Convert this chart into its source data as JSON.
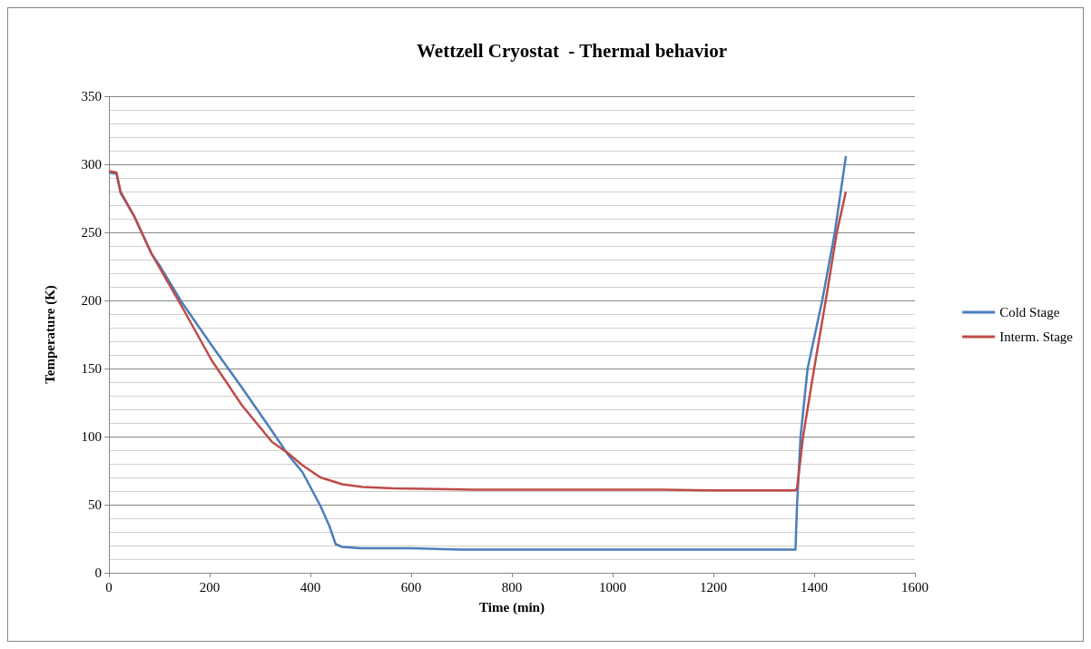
{
  "chart_data": {
    "type": "line",
    "title": "Wettzell Cryostat  - Thermal behavior",
    "xlabel": "Time (min)",
    "ylabel": "Temperature (K)",
    "xlim": [
      0,
      1600
    ],
    "xticks": [
      0,
      200,
      400,
      600,
      800,
      1000,
      1200,
      1400,
      1600
    ],
    "ylim": [
      0,
      350
    ],
    "yticks": [
      0,
      50,
      100,
      150,
      200,
      250,
      300,
      350
    ],
    "grid": "y",
    "legend": "right",
    "marker": "none",
    "line_style": "solid",
    "series": [
      {
        "name": "Cold Stage",
        "color": "#4a7ebb",
        "x": [
          0,
          15,
          23,
          50,
          85,
          100,
          144,
          204,
          264,
          324,
          355,
          384,
          420,
          438,
          450,
          463,
          500,
          600,
          700,
          800,
          900,
          1000,
          1100,
          1200,
          1300,
          1363,
          1366,
          1373,
          1387,
          1416,
          1441,
          1463
        ],
        "values": [
          294,
          293,
          279,
          262,
          234,
          226,
          199,
          167,
          136,
          104,
          87,
          74,
          49,
          34,
          21,
          19,
          18,
          18,
          17,
          17,
          17,
          17,
          17,
          17,
          17,
          17,
          50,
          100,
          150,
          200,
          250,
          306
        ]
      },
      {
        "name": "Interm. Stage",
        "color": "#be4b48",
        "x": [
          0,
          15,
          23,
          50,
          85,
          144,
          204,
          264,
          324,
          355,
          384,
          420,
          463,
          504,
          564,
          720,
          900,
          1100,
          1200,
          1363,
          1366,
          1378,
          1400,
          1423,
          1445,
          1463
        ],
        "values": [
          295,
          294,
          280,
          262,
          234,
          196,
          156,
          123,
          96,
          88,
          79,
          70,
          65,
          63,
          62,
          61,
          61,
          61,
          60.5,
          60.5,
          62,
          100,
          150,
          200,
          250,
          280
        ]
      }
    ]
  }
}
